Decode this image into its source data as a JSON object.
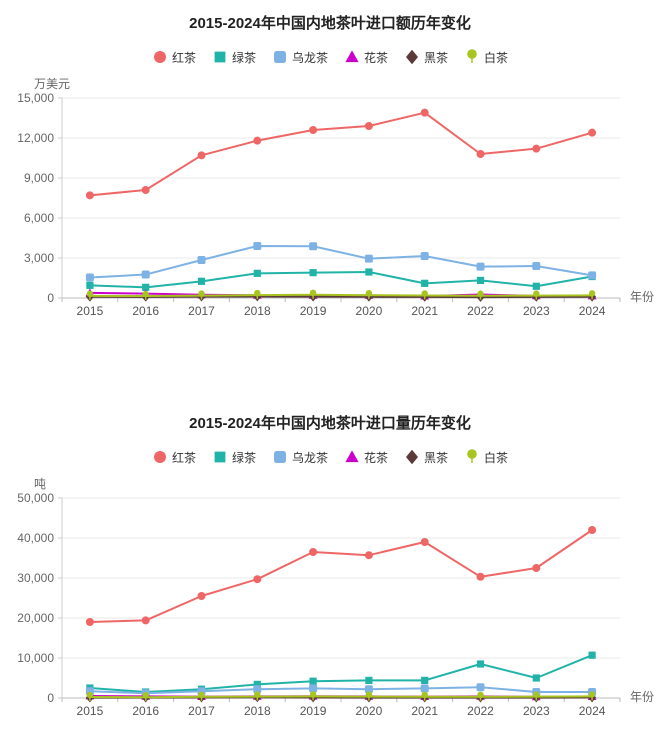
{
  "page": {
    "background": "#ffffff",
    "text_color": "#222222",
    "axis_label_color": "#666666"
  },
  "chart_data": [
    {
      "type": "line",
      "title": "2015-2024年中国内地茶叶进口额历年变化",
      "ylabel": "万美元",
      "xlabel": "年份",
      "categories": [
        "2015",
        "2016",
        "2017",
        "2018",
        "2019",
        "2020",
        "2021",
        "2022",
        "2023",
        "2024"
      ],
      "ylim": [
        0,
        15000
      ],
      "ytick_step": 3000,
      "grid": true,
      "legend_position": "top",
      "series": [
        {
          "name": "红茶",
          "slug": "black-tea",
          "color": "#ee6666",
          "symbol": "circle",
          "values": [
            7700,
            8100,
            10700,
            11800,
            12600,
            12900,
            13900,
            10800,
            11200,
            12400
          ]
        },
        {
          "name": "绿茶",
          "slug": "green-tea",
          "color": "#21b3a8",
          "symbol": "rect",
          "values": [
            950,
            800,
            1250,
            1850,
            1900,
            1950,
            1100,
            1320,
            880,
            1610
          ]
        },
        {
          "name": "乌龙茶",
          "slug": "oolong-tea",
          "color": "#7eb2e4",
          "symbol": "roundRect",
          "values": [
            1540,
            1760,
            2850,
            3900,
            3880,
            2950,
            3150,
            2350,
            2400,
            1700
          ]
        },
        {
          "name": "花茶",
          "slug": "scented-tea",
          "color": "#cc00cc",
          "symbol": "triangle",
          "values": [
            380,
            330,
            240,
            200,
            190,
            200,
            140,
            260,
            160,
            150
          ]
        },
        {
          "name": "黑茶",
          "slug": "dark-tea",
          "color": "#5b3a3a",
          "symbol": "diamond",
          "values": [
            90,
            85,
            100,
            110,
            100,
            90,
            80,
            70,
            80,
            90
          ]
        },
        {
          "name": "白茶",
          "slug": "white-tea",
          "color": "#a8c421",
          "symbol": "pin",
          "values": [
            160,
            150,
            180,
            220,
            240,
            210,
            190,
            170,
            180,
            200
          ]
        }
      ]
    },
    {
      "type": "line",
      "title": "2015-2024年中国内地茶叶进口量历年变化",
      "ylabel": "吨",
      "xlabel": "年份",
      "categories": [
        "2015",
        "2016",
        "2017",
        "2018",
        "2019",
        "2020",
        "2021",
        "2022",
        "2023",
        "2024"
      ],
      "ylim": [
        0,
        50000
      ],
      "ytick_step": 10000,
      "grid": true,
      "legend_position": "top",
      "series": [
        {
          "name": "红茶",
          "slug": "black-tea",
          "color": "#ee6666",
          "symbol": "circle",
          "values": [
            19000,
            19400,
            25500,
            29700,
            36500,
            35700,
            39000,
            30300,
            32500,
            42000
          ]
        },
        {
          "name": "绿茶",
          "slug": "green-tea",
          "color": "#21b3a8",
          "symbol": "rect",
          "values": [
            2500,
            1500,
            2200,
            3400,
            4200,
            4400,
            4400,
            8500,
            5000,
            10700
          ]
        },
        {
          "name": "乌龙茶",
          "slug": "oolong-tea",
          "color": "#7eb2e4",
          "symbol": "roundRect",
          "values": [
            1700,
            1200,
            1700,
            2200,
            2400,
            2200,
            2400,
            2700,
            1500,
            1500
          ]
        },
        {
          "name": "花茶",
          "slug": "scented-tea",
          "color": "#cc00cc",
          "symbol": "triangle",
          "values": [
            500,
            400,
            350,
            400,
            450,
            400,
            350,
            400,
            300,
            350
          ]
        },
        {
          "name": "黑茶",
          "slug": "dark-tea",
          "color": "#5b3a3a",
          "symbol": "diamond",
          "values": [
            100,
            80,
            120,
            150,
            120,
            100,
            100,
            80,
            100,
            120
          ]
        },
        {
          "name": "白茶",
          "slug": "white-tea",
          "color": "#a8c421",
          "symbol": "pin",
          "values": [
            250,
            200,
            300,
            350,
            400,
            350,
            300,
            300,
            350,
            400
          ]
        }
      ]
    }
  ]
}
